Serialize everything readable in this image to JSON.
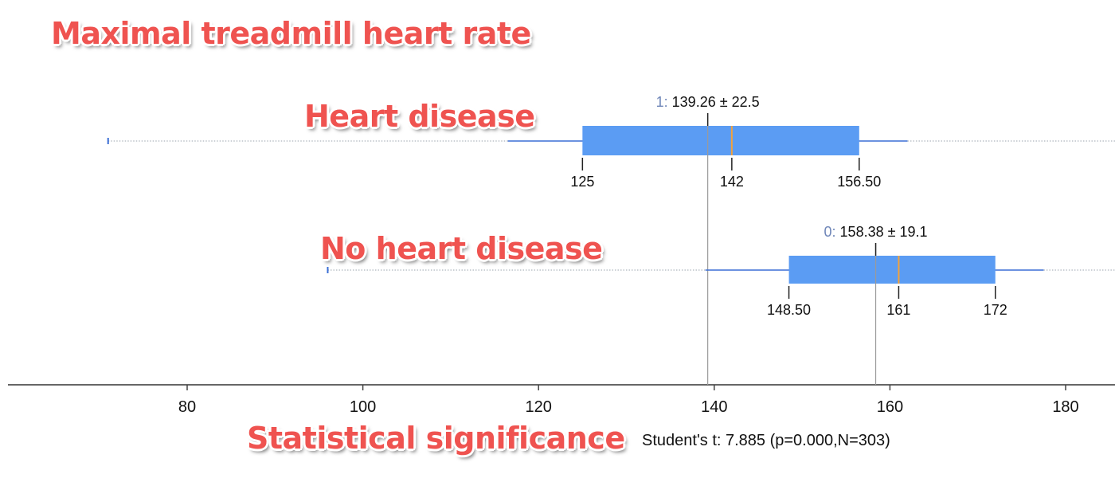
{
  "annotations": {
    "title": "Maximal treadmill heart rate",
    "group_1_label": "Heart disease",
    "group_0_label": "No heart disease",
    "significance_label": "Statistical significance"
  },
  "statistic_text": "Student's t: 7.885 (p=0.000,N=303)",
  "colors": {
    "box_fill": "#5b9cf3",
    "whisker": "#3b6fd6",
    "median": "#f2a23c",
    "annotation_red": "#ef5350",
    "axis": "#666666"
  },
  "chart_data": {
    "type": "boxplot",
    "xlim": [
      60,
      185
    ],
    "xticks": [
      80,
      100,
      120,
      140,
      160,
      180
    ],
    "groups": [
      {
        "code": "1",
        "mean": 139.26,
        "sd": 22.5,
        "mean_text": "139.26 ± 22.5",
        "q1": 125,
        "median": 142,
        "q3": 156.5,
        "q1_label": "125",
        "median_label": "142",
        "q3_label": "156.50",
        "whisker_low": 116.5,
        "whisker_high": 162,
        "min": 71
      },
      {
        "code": "0",
        "mean": 158.38,
        "sd": 19.1,
        "mean_text": "158.38 ± 19.1",
        "q1": 148.5,
        "median": 161,
        "q3": 172,
        "q1_label": "148.50",
        "median_label": "161",
        "q3_label": "172",
        "whisker_low": 139,
        "whisker_high": 177.5,
        "min": 96
      }
    ]
  }
}
